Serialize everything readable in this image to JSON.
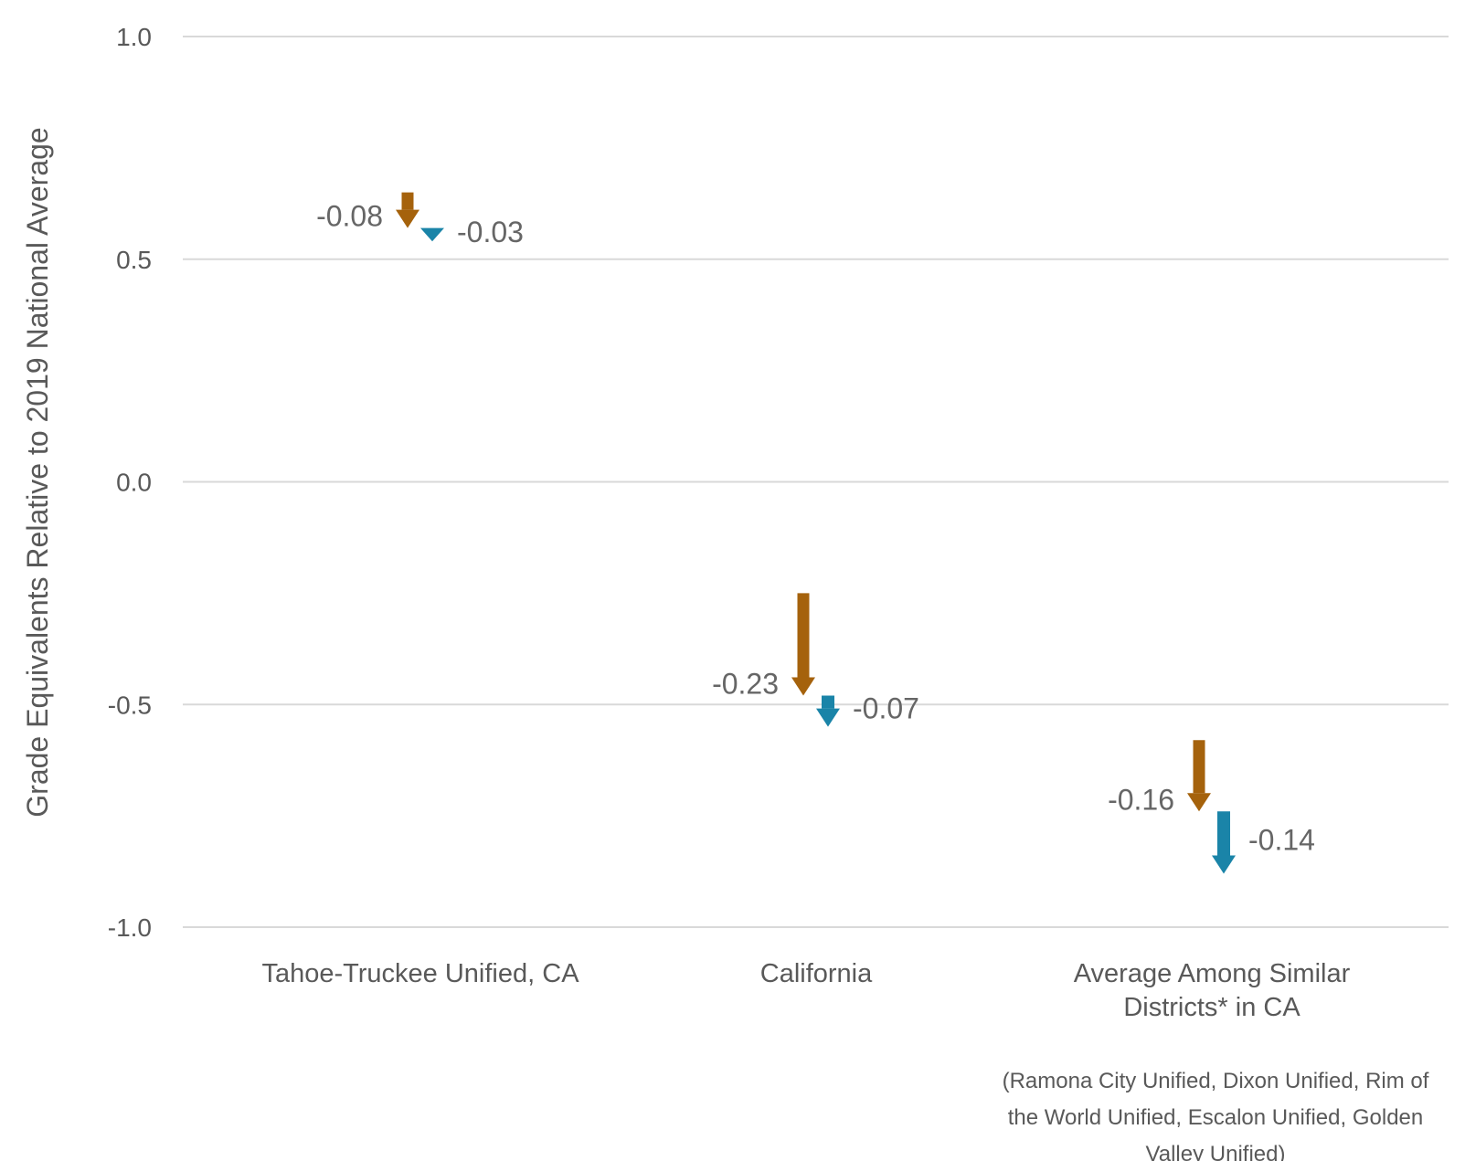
{
  "chart_data": {
    "type": "arrow",
    "ylabel": "Grade Equivalents Relative to 2019 National Average",
    "ylim": [
      -1.0,
      1.0
    ],
    "yticks": [
      {
        "value": 1.0,
        "label": "1.0"
      },
      {
        "value": 0.5,
        "label": "0.5"
      },
      {
        "value": 0.0,
        "label": "0.0"
      },
      {
        "value": -0.5,
        "label": "-0.5"
      },
      {
        "value": -1.0,
        "label": "-1.0"
      }
    ],
    "grid": true,
    "categories": [
      {
        "lines": [
          "Tahoe-Truckee Unified, CA"
        ]
      },
      {
        "lines": [
          "California"
        ]
      },
      {
        "lines": [
          "Average Among Similar",
          "Districts* in CA"
        ]
      }
    ],
    "series_colors": [
      "#a5620c",
      "#1a84a8"
    ],
    "arrows": [
      [
        {
          "start": 0.65,
          "end": 0.57,
          "label": "-0.08"
        },
        {
          "start": 0.57,
          "end": 0.54,
          "label": "-0.03"
        }
      ],
      [
        {
          "start": -0.25,
          "end": -0.48,
          "label": "-0.23"
        },
        {
          "start": -0.48,
          "end": -0.55,
          "label": "-0.07"
        }
      ],
      [
        {
          "start": -0.58,
          "end": -0.74,
          "label": "-0.16"
        },
        {
          "start": -0.74,
          "end": -0.88,
          "label": "-0.14"
        }
      ]
    ],
    "note_lines": [
      "(Ramona City Unified, Dixon Unified, Rim of",
      "the World Unified, Escalon Unified, Golden",
      "Valley Unified)"
    ]
  }
}
